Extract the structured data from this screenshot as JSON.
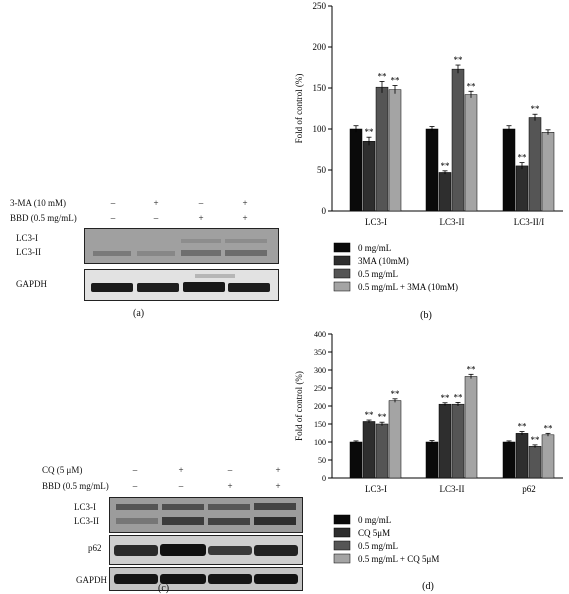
{
  "colors": {
    "series": [
      "#0a0a0a",
      "#2e2e2e",
      "#555555",
      "#a4a4a4"
    ]
  },
  "panel_a": {
    "label": "(a)",
    "treatments": [
      {
        "name": "3-MA (10 mM)",
        "signs": [
          "–",
          "+",
          "–",
          "+"
        ]
      },
      {
        "name": "BBD (0.5 mg/mL)",
        "signs": [
          "–",
          "–",
          "+",
          "+"
        ]
      }
    ],
    "blot1_labels": [
      "LC3-I",
      "LC3-II"
    ],
    "blot2_label": "GAPDH"
  },
  "panel_c": {
    "label": "(c)",
    "treatments": [
      {
        "name": "CQ (5 μM)",
        "signs": [
          "–",
          "+",
          "–",
          "+"
        ]
      },
      {
        "name": "BBD (0.5 mg/mL)",
        "signs": [
          "–",
          "–",
          "+",
          "+"
        ]
      }
    ],
    "blot1_labels": [
      "LC3-I",
      "LC3-II"
    ],
    "blot2_label": "p62",
    "blot3_label": "GAPDH"
  },
  "chart_data": [
    {
      "type": "bar",
      "panel": "(b)",
      "ylabel": "Fold of control (%)",
      "ylim": [
        0,
        250
      ],
      "yticks": [
        0,
        50,
        100,
        150,
        200,
        250
      ],
      "categories": [
        "LC3-I",
        "LC3-II",
        "LC3-II/I"
      ],
      "series": [
        {
          "name": "0 mg/mL",
          "values": [
            100,
            100,
            100
          ],
          "errors": [
            4,
            3,
            4
          ]
        },
        {
          "name": "3MA (10mM)",
          "values": [
            85,
            47,
            55
          ],
          "errors": [
            5,
            2,
            4
          ]
        },
        {
          "name": "0.5 mg/mL",
          "values": [
            151,
            173,
            114
          ],
          "errors": [
            7,
            5,
            4
          ]
        },
        {
          "name": "0.5 mg/mL + 3MA (10mM)",
          "values": [
            148,
            142,
            96
          ],
          "errors": [
            5,
            4,
            3
          ]
        }
      ],
      "annotations": [
        [
          "",
          "**",
          "**",
          "**"
        ],
        [
          "",
          "**",
          "**",
          "**"
        ],
        [
          "",
          "**",
          "**",
          ""
        ]
      ],
      "grid": false,
      "legend_position": "bottom"
    },
    {
      "type": "bar",
      "panel": "(d)",
      "ylabel": "Fold of control (%)",
      "ylim": [
        0,
        400
      ],
      "yticks": [
        0,
        50,
        100,
        150,
        200,
        250,
        300,
        350,
        400
      ],
      "categories": [
        "LC3-I",
        "LC3-II",
        "p62"
      ],
      "series": [
        {
          "name": "0 mg/mL",
          "values": [
            100,
            100,
            100
          ],
          "errors": [
            3,
            4,
            3
          ]
        },
        {
          "name": "CQ 5μM",
          "values": [
            157,
            205,
            124
          ],
          "errors": [
            4,
            4,
            5
          ]
        },
        {
          "name": "0.5 mg/mL",
          "values": [
            150,
            205,
            88
          ],
          "errors": [
            5,
            5,
            4
          ]
        },
        {
          "name": "0.5 mg/mL + CQ 5μM",
          "values": [
            215,
            282,
            120
          ],
          "errors": [
            5,
            6,
            4
          ]
        }
      ],
      "annotations": [
        [
          "",
          "**",
          "**",
          "**"
        ],
        [
          "",
          "**",
          "**",
          "**"
        ],
        [
          "",
          "**",
          "**",
          "**"
        ]
      ],
      "grid": false,
      "legend_position": "bottom"
    }
  ]
}
